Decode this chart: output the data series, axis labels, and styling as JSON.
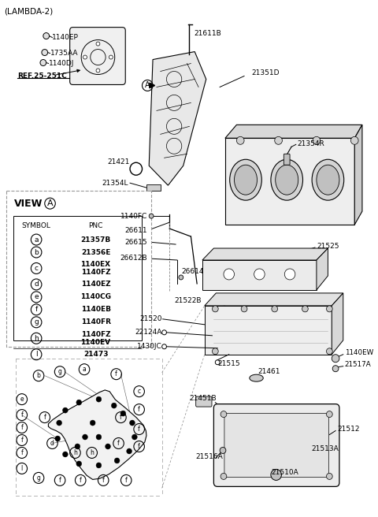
{
  "title": "(LAMBDA-2)",
  "bg_color": "#ffffff",
  "table_rows": [
    [
      "a",
      "21357B"
    ],
    [
      "b",
      "21356E"
    ],
    [
      "c",
      "1140EX\n1140FZ"
    ],
    [
      "d",
      "1140EZ"
    ],
    [
      "e",
      "1140CG"
    ],
    [
      "f",
      "1140EB"
    ],
    [
      "g",
      "1140FR"
    ],
    [
      "h",
      "1140FZ\n1140EV"
    ],
    [
      "l",
      "21473"
    ]
  ]
}
